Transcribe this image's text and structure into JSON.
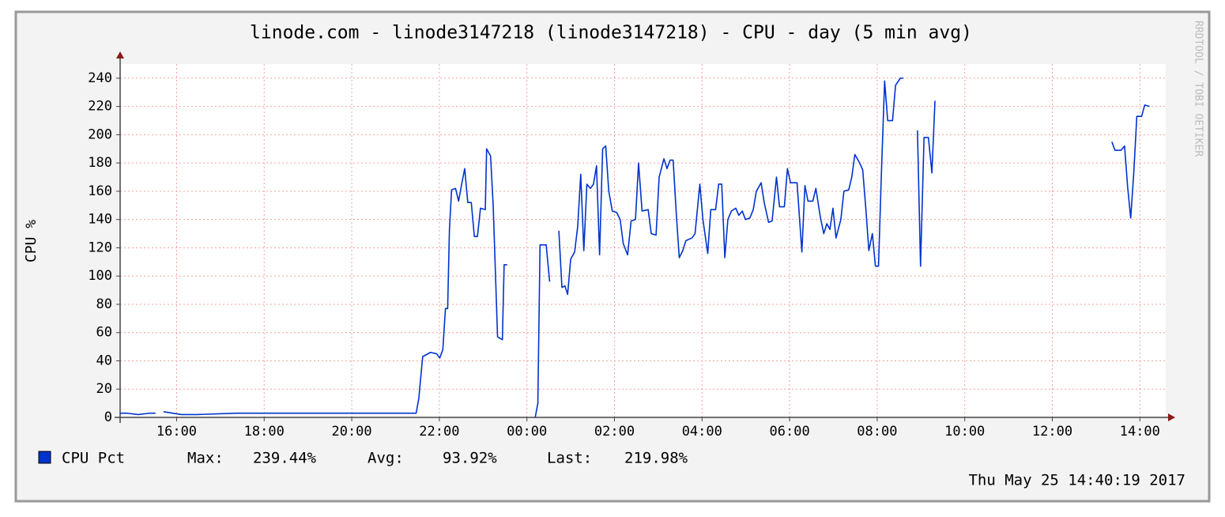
{
  "chart_data": {
    "type": "line",
    "title": "linode.com - linode3147218 (linode3147218) - CPU - day (5 min avg)",
    "y_label": "CPU %",
    "watermark": "RRDTOOL / TOBI OETIKER",
    "timestamp": "Thu May 25 14:40:19 2017",
    "legend_stats": [
      {
        "label": "Max:",
        "value": "239.44%"
      },
      {
        "label": "Avg:",
        "value": "93.92%"
      },
      {
        "label": "Last:",
        "value": "219.98%"
      }
    ],
    "grid": true,
    "xlim": [
      14.71,
      38.59
    ],
    "ylim": [
      0,
      250
    ],
    "yticks": [
      0,
      20,
      40,
      60,
      80,
      100,
      120,
      140,
      160,
      180,
      200,
      220,
      240
    ],
    "xticks": [
      {
        "value": 16,
        "label": "16:00"
      },
      {
        "value": 18,
        "label": "18:00"
      },
      {
        "value": 20,
        "label": "20:00"
      },
      {
        "value": 22,
        "label": "22:00"
      },
      {
        "value": 24,
        "label": "00:00"
      },
      {
        "value": 26,
        "label": "02:00"
      },
      {
        "value": 28,
        "label": "04:00"
      },
      {
        "value": 30,
        "label": "06:00"
      },
      {
        "value": 32,
        "label": "08:00"
      },
      {
        "value": 34,
        "label": "10:00"
      },
      {
        "value": 36,
        "label": "12:00"
      },
      {
        "value": 38,
        "label": "14:00"
      }
    ],
    "x": [
      14.71,
      14.86,
      15.12,
      15.39,
      15.52,
      15.6,
      15.7,
      16.11,
      16.47,
      17.36,
      18.25,
      19.15,
      20.04,
      20.94,
      21.3,
      21.47,
      21.53,
      21.62,
      21.8,
      21.94,
      22.01,
      22.08,
      22.14,
      22.19,
      22.23,
      22.28,
      22.37,
      22.44,
      22.51,
      22.58,
      22.65,
      22.73,
      22.8,
      22.87,
      22.94,
      23.05,
      23.08,
      23.17,
      23.23,
      23.33,
      23.44,
      23.48,
      23.55,
      23.85,
      24.19,
      24.25,
      24.3,
      24.44,
      24.52,
      24.62,
      24.73,
      24.8,
      24.87,
      24.93,
      25.0,
      25.09,
      25.16,
      25.23,
      25.3,
      25.37,
      25.45,
      25.52,
      25.59,
      25.66,
      25.73,
      25.8,
      25.87,
      25.95,
      26.05,
      26.13,
      26.2,
      26.3,
      26.38,
      26.48,
      26.55,
      26.63,
      26.77,
      26.84,
      26.95,
      27.02,
      27.13,
      27.2,
      27.27,
      27.34,
      27.41,
      27.48,
      27.56,
      27.63,
      27.77,
      27.84,
      27.95,
      28.02,
      28.13,
      28.2,
      28.31,
      28.38,
      28.45,
      28.52,
      28.59,
      28.67,
      28.77,
      28.84,
      28.92,
      28.99,
      29.09,
      29.17,
      29.24,
      29.35,
      29.42,
      29.52,
      29.6,
      29.7,
      29.77,
      29.88,
      29.95,
      30.02,
      30.17,
      30.28,
      30.35,
      30.42,
      30.53,
      30.6,
      30.7,
      30.78,
      30.85,
      30.92,
      30.99,
      31.06,
      31.17,
      31.24,
      31.35,
      31.42,
      31.49,
      31.6,
      31.67,
      31.74,
      31.81,
      31.89,
      31.96,
      32.03,
      32.1,
      32.17,
      32.24,
      32.35,
      32.42,
      32.53,
      32.6,
      32.75,
      32.92,
      32.99,
      33.07,
      33.17,
      33.25,
      33.32,
      35.3,
      37.36,
      37.43,
      37.57,
      37.65,
      37.72,
      37.79,
      37.86,
      37.93,
      38.04,
      38.11,
      38.22
    ],
    "series": [
      {
        "name": "CPU Pct",
        "color": "#0033cc",
        "values": [
          3,
          3,
          2,
          3,
          3,
          null,
          4,
          2,
          2,
          3,
          3,
          3,
          3,
          3,
          3,
          3,
          13,
          43,
          46,
          45,
          42,
          48,
          77,
          77,
          132,
          161,
          162,
          153,
          165,
          176,
          152,
          152,
          128,
          128,
          148,
          147,
          190,
          185,
          150,
          57,
          55,
          108,
          108,
          null,
          0,
          10,
          122,
          122,
          96,
          null,
          132,
          92,
          93,
          87,
          112,
          117,
          135,
          172,
          118,
          165,
          162,
          165,
          178,
          115,
          190,
          192,
          160,
          146,
          145,
          140,
          123,
          115,
          139,
          140,
          180,
          146,
          147,
          130,
          129,
          170,
          183,
          176,
          182,
          182,
          145,
          113,
          118,
          125,
          127,
          130,
          165,
          140,
          116,
          147,
          147,
          165,
          165,
          113,
          140,
          146,
          148,
          143,
          146,
          140,
          141,
          147,
          160,
          166,
          152,
          138,
          139,
          170,
          149,
          149,
          176,
          166,
          166,
          117,
          164,
          153,
          153,
          162,
          142,
          130,
          137,
          133,
          148,
          127,
          140,
          160,
          161,
          170,
          186,
          180,
          175,
          148,
          118,
          130,
          107,
          107,
          176,
          238,
          210,
          210,
          235,
          240,
          240,
          null,
          203,
          107,
          198,
          198,
          173,
          224,
          null,
          195,
          189,
          189,
          192,
          163,
          141,
          173,
          213,
          213,
          221,
          220
        ]
      }
    ]
  }
}
